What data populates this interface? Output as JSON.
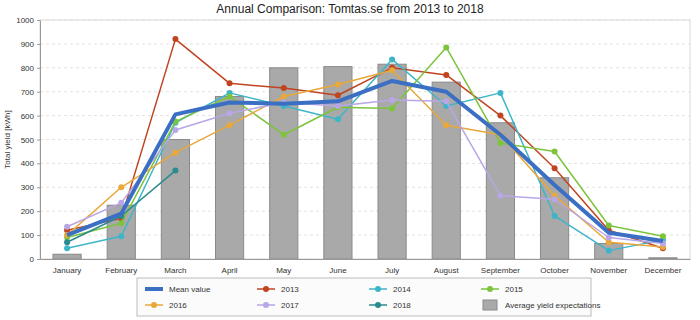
{
  "chart_data": {
    "type": "line",
    "title": "Annual Comparison: Tomtas.se from 2013 to 2018",
    "y_label": "Total yield [kWh]",
    "categories": [
      "January",
      "February",
      "March",
      "April",
      "May",
      "June",
      "July",
      "August",
      "September",
      "October",
      "November",
      "December"
    ],
    "ylim": [
      0,
      1000
    ],
    "yticks": [
      0,
      100,
      200,
      300,
      400,
      500,
      600,
      700,
      800,
      900,
      1000
    ],
    "grid": true,
    "legend": "bottom",
    "series": [
      {
        "name": "Mean value",
        "type": "line",
        "color": "#3a6fc4",
        "marker": "none",
        "line_style": "thick",
        "values": [
          100,
          190,
          605,
          655,
          650,
          660,
          745,
          700,
          520,
          310,
          110,
          75
        ]
      },
      {
        "name": "2013",
        "type": "line",
        "color": "#c0441f",
        "marker": "circle",
        "line_style": "solid",
        "values": [
          120,
          170,
          920,
          735,
          715,
          685,
          800,
          770,
          600,
          380,
          120,
          45
        ]
      },
      {
        "name": "2014",
        "type": "line",
        "color": "#3db5c9",
        "marker": "circle",
        "line_style": "solid",
        "values": [
          45,
          95,
          570,
          695,
          640,
          585,
          835,
          640,
          695,
          180,
          35,
          80
        ]
      },
      {
        "name": "2015",
        "type": "line",
        "color": "#7dc43c",
        "marker": "circle",
        "line_style": "solid",
        "values": [
          90,
          150,
          575,
          680,
          520,
          635,
          630,
          885,
          485,
          450,
          140,
          95
        ]
      },
      {
        "name": "2016",
        "type": "line",
        "color": "#e8a83a",
        "marker": "circle",
        "line_style": "solid",
        "values": [
          100,
          300,
          445,
          560,
          680,
          730,
          790,
          560,
          520,
          265,
          70,
          50
        ]
      },
      {
        "name": "2017",
        "type": "line",
        "color": "#b9a6e6",
        "marker": "circle",
        "line_style": "solid",
        "values": [
          135,
          235,
          540,
          610,
          655,
          640,
          665,
          660,
          265,
          250,
          90,
          65
        ]
      },
      {
        "name": "2018",
        "type": "line",
        "color": "#2a8a8f",
        "marker": "circle",
        "line_style": "solid",
        "values": [
          70,
          180,
          370,
          null,
          null,
          null,
          null,
          null,
          null,
          null,
          null,
          null
        ]
      },
      {
        "name": "Average yield expectations",
        "type": "bar",
        "color": "#a9a9a9",
        "values": [
          20,
          225,
          500,
          680,
          800,
          805,
          815,
          740,
          570,
          340,
          65,
          5
        ]
      }
    ]
  }
}
